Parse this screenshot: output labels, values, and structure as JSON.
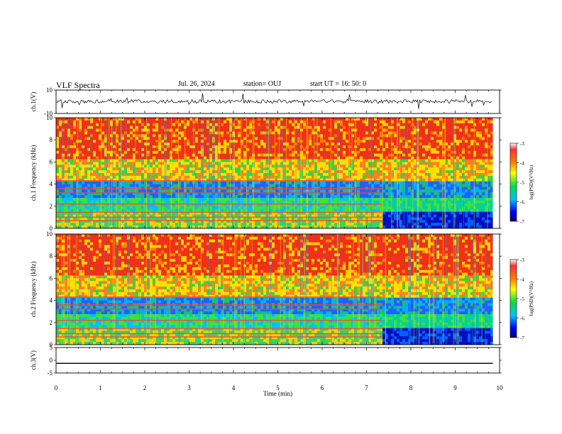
{
  "header": {
    "title": "VLF Spectra",
    "date": "Jul. 26, 2024",
    "station": "station= OUJ",
    "start": "start UT =  16: 50: 0"
  },
  "chart_data": {
    "type": "heatmap",
    "title": "VLF Spectra",
    "xlabel": "Time (min)",
    "xlim": [
      0,
      10
    ],
    "x_ticks": [
      "0",
      "1",
      "2",
      "3",
      "4",
      "5",
      "6",
      "7",
      "8",
      "9",
      "10"
    ],
    "panels": [
      {
        "name": "ch1-waveform",
        "type": "line",
        "ylabel": "ch.1(V)",
        "ylim": [
          -10,
          10
        ],
        "y_ticks": [
          "10",
          "-10"
        ]
      },
      {
        "name": "ch1-spectrogram",
        "type": "heatmap",
        "ylabel": "ch.1 Frequency (kHz)",
        "ylim": [
          0,
          10
        ],
        "y_ticks": [
          "0",
          "2",
          "4",
          "6",
          "8",
          "10"
        ]
      },
      {
        "name": "ch2-spectrogram",
        "type": "heatmap",
        "ylabel": "ch.2 Frequency (kHz)",
        "ylim": [
          0,
          10
        ],
        "y_ticks": [
          "0",
          "2",
          "4",
          "6",
          "8",
          "10"
        ]
      },
      {
        "name": "ch3-waveform",
        "type": "line",
        "ylabel": "ch.3(V)",
        "ylim": [
          -5,
          5
        ],
        "y_ticks": [
          "5",
          "0",
          "-5"
        ],
        "value": -1.2
      }
    ],
    "colorbar": {
      "label": "log(PSD)(V²/Hz)",
      "range": [
        -7,
        -3
      ],
      "ticks": [
        "-3",
        "-4",
        "-5",
        "-6",
        "-7"
      ]
    },
    "data_end_min": 9.85,
    "regime_change_min": 7.35
  }
}
